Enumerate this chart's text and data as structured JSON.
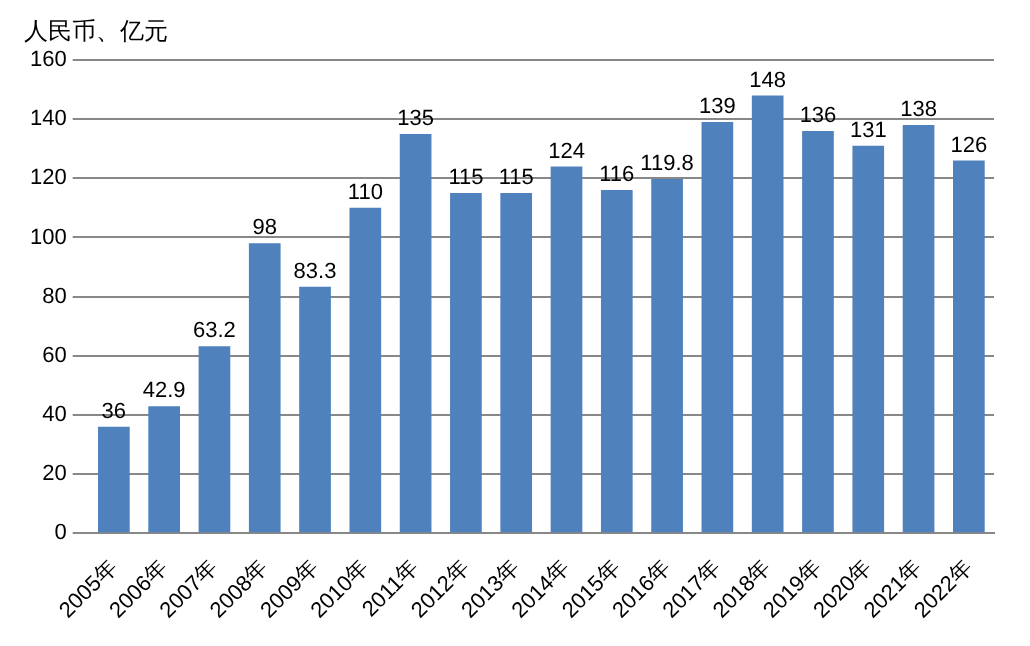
{
  "chart_data": {
    "type": "bar",
    "ylabel": "人民币、亿元",
    "categories": [
      "2005年",
      "2006年",
      "2007年",
      "2008年",
      "2009年",
      "2010年",
      "2011年",
      "2012年",
      "2013年",
      "2014年",
      "2015年",
      "2016年",
      "2017年",
      "2018年",
      "2019年",
      "2020年",
      "2021年",
      "2022年"
    ],
    "values": [
      36,
      42.9,
      63.2,
      98,
      83.3,
      110,
      135,
      115,
      115,
      124,
      116,
      119.8,
      139,
      148,
      136,
      131,
      138,
      126
    ],
    "color": "#4f81bd",
    "ylim": [
      0,
      160
    ],
    "yticks": [
      0,
      20,
      40,
      60,
      80,
      100,
      120,
      140,
      160
    ],
    "grid": "y",
    "data_labels": true,
    "legend": false
  }
}
